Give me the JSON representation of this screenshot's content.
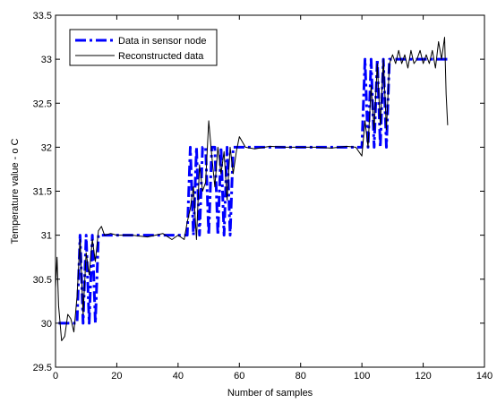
{
  "chart_data": {
    "type": "line",
    "title": "",
    "xlabel": "Number of samples",
    "ylabel": "Temperature value - o C",
    "xlim": [
      0,
      140
    ],
    "ylim": [
      29.5,
      33.5
    ],
    "xticks": [
      0,
      20,
      40,
      60,
      80,
      100,
      120,
      140
    ],
    "xtick_labels": [
      "0",
      "20",
      "40",
      "60",
      "80",
      "100",
      "120",
      "140"
    ],
    "yticks": [
      29.5,
      30,
      30.5,
      31,
      31.5,
      32,
      32.5,
      33,
      33.5
    ],
    "ytick_labels": [
      "29.5",
      "30",
      "30.5",
      "31",
      "31.5",
      "32",
      "32.5",
      "33",
      "33.5"
    ],
    "grid": false,
    "legend_position": "top-left",
    "series": [
      {
        "name": "Data in sensor node",
        "color": "#0000ff",
        "line_style": "dash-dot",
        "x": [
          1,
          2,
          3,
          4,
          5,
          6,
          7,
          8,
          9,
          10,
          11,
          12,
          13,
          14,
          15,
          20,
          25,
          30,
          35,
          40,
          42,
          43,
          44,
          45,
          46,
          47,
          48,
          49,
          50,
          51,
          52,
          53,
          54,
          55,
          56,
          57,
          58,
          60,
          70,
          80,
          90,
          100,
          101,
          102,
          103,
          104,
          105,
          106,
          107,
          108,
          109,
          110,
          115,
          120,
          125,
          126,
          127,
          128
        ],
        "y": [
          30,
          30,
          30,
          30,
          30,
          30,
          30,
          31,
          30,
          31,
          30,
          31,
          30,
          31,
          31,
          31,
          31,
          31,
          31,
          31,
          31,
          31,
          32,
          31,
          32,
          31,
          32,
          32,
          31,
          32,
          32,
          31,
          32,
          31,
          32,
          31,
          32,
          32,
          32,
          32,
          32,
          32,
          33,
          32,
          33,
          32,
          33,
          32,
          33,
          32,
          33,
          33,
          33,
          33,
          33,
          33,
          33,
          33
        ]
      },
      {
        "name": "Reconstructed data",
        "color": "#000000",
        "line_style": "solid",
        "x": [
          0,
          0.5,
          1,
          2,
          3,
          4,
          5,
          6,
          7,
          8,
          9,
          10,
          11,
          12,
          13,
          14,
          15,
          16,
          18,
          20,
          25,
          30,
          35,
          38,
          40,
          42,
          43,
          44,
          45,
          46,
          47,
          48,
          49,
          50,
          51,
          52,
          53,
          54,
          55,
          56,
          57,
          58,
          59,
          60,
          62,
          65,
          70,
          75,
          80,
          85,
          90,
          95,
          98,
          100,
          101,
          102,
          103,
          104,
          105,
          106,
          107,
          108,
          109,
          110,
          111,
          112,
          113,
          114,
          115,
          116,
          117,
          118,
          119,
          120,
          121,
          122,
          123,
          124,
          125,
          126,
          127,
          127.5,
          128
        ],
        "y": [
          30.4,
          30.75,
          30.2,
          29.8,
          29.85,
          30.1,
          30.05,
          29.9,
          30.3,
          30.95,
          30.1,
          30.8,
          30.55,
          30.95,
          30.7,
          31.05,
          31.1,
          31.0,
          31.02,
          31.0,
          31.0,
          30.98,
          31.02,
          30.95,
          31.0,
          30.95,
          31.15,
          31.3,
          31.55,
          30.95,
          31.8,
          31.5,
          31.6,
          32.3,
          31.9,
          31.55,
          32.0,
          31.7,
          31.95,
          31.4,
          32.0,
          31.7,
          31.95,
          32.12,
          32.0,
          31.98,
          32.01,
          32.0,
          32.0,
          32.0,
          31.99,
          32.01,
          32.0,
          31.9,
          32.3,
          32.0,
          32.7,
          32.2,
          32.95,
          32.25,
          33.0,
          32.2,
          32.95,
          33.05,
          32.95,
          33.1,
          32.95,
          33.05,
          32.9,
          33.1,
          32.95,
          33.0,
          33.1,
          32.95,
          33.05,
          32.95,
          33.1,
          32.9,
          33.2,
          33.0,
          33.25,
          32.6,
          32.25
        ]
      }
    ]
  }
}
